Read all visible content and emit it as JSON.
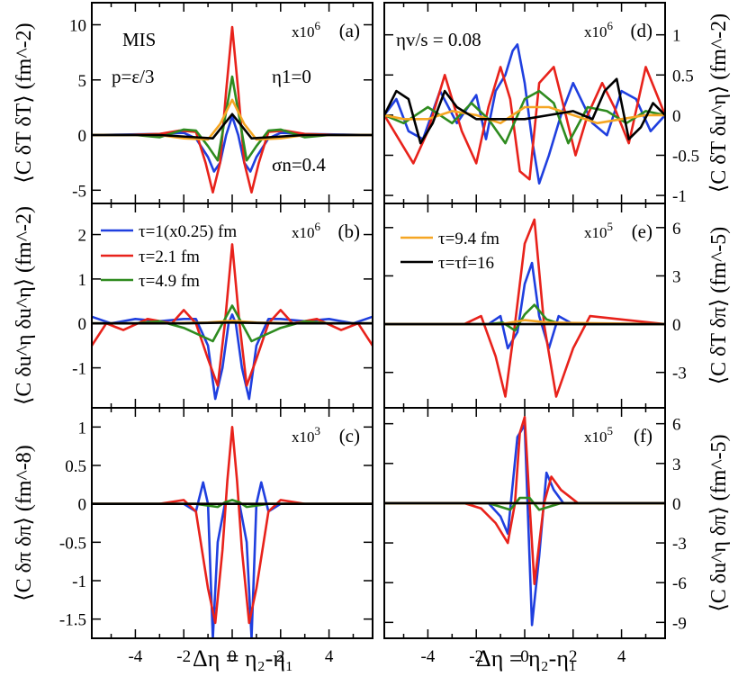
{
  "figure": {
    "x_axis_label": "Δη = η₂-η₁",
    "legend": [
      {
        "label": "τ=1(x0.25) fm",
        "color": "#1f3fdf"
      },
      {
        "label": "τ=2.1 fm",
        "color": "#e8221b"
      },
      {
        "label": "τ=4.9 fm",
        "color": "#2e8b1f"
      },
      {
        "label": "τ=9.4 fm",
        "color": "#f5a623"
      },
      {
        "label": "τ=τf=16",
        "color": "#000000"
      }
    ],
    "annotations": {
      "model": "MIS",
      "eos": "p=ε/3",
      "eta1": "η1=0",
      "sigma": "σn=0.4",
      "viscosity": "ηv/s = 0.08"
    }
  },
  "chart_data": [
    {
      "id": "a",
      "type": "line",
      "panel_label": "(a)",
      "scale": "x10^6",
      "ylabel": "⟨C δT δT⟩ (fm^-2)",
      "xlim": [
        -5.8,
        5.8
      ],
      "ylim": [
        -6.2,
        12
      ],
      "yticks": [
        -5,
        0,
        5,
        10
      ],
      "series": [
        {
          "name": "τ=1(x0.25) fm",
          "color": "#1f3fdf",
          "x": [
            -5.8,
            -4.5,
            -3,
            -2,
            -1.5,
            -1,
            -0.75,
            -0.5,
            -0.25,
            0,
            0.25,
            0.5,
            0.75,
            1,
            1.5,
            2,
            3,
            4.5,
            5.8
          ],
          "y": [
            0,
            0.05,
            0.1,
            0.2,
            -0.3,
            -2,
            -3.3,
            -2.5,
            0,
            1.7,
            0,
            -2.5,
            -3.3,
            -2,
            -0.3,
            0.2,
            0.1,
            0.05,
            0
          ]
        },
        {
          "name": "τ=2.1 fm",
          "color": "#e8221b",
          "x": [
            -5.8,
            -4.5,
            -3,
            -2.2,
            -1.5,
            -1.1,
            -0.8,
            -0.5,
            -0.25,
            0,
            0.25,
            0.5,
            0.8,
            1.1,
            1.5,
            2.2,
            3,
            4.5,
            5.8
          ],
          "y": [
            0,
            0,
            0.1,
            0.4,
            0.3,
            -2.5,
            -5.2,
            -2.5,
            4,
            9.8,
            4,
            -2.5,
            -5.2,
            -2.5,
            0.3,
            0.4,
            0.1,
            0,
            0
          ]
        },
        {
          "name": "τ=4.9 fm",
          "color": "#2e8b1f",
          "x": [
            -5.8,
            -4,
            -3,
            -2,
            -1.5,
            -1,
            -0.6,
            -0.3,
            0,
            0.3,
            0.6,
            1,
            1.5,
            2,
            3,
            4,
            5.8
          ],
          "y": [
            0,
            0,
            -0.2,
            0.5,
            0.4,
            -1,
            -2.3,
            1.5,
            5.3,
            1.5,
            -2.3,
            -1,
            0.4,
            0.5,
            -0.2,
            0,
            0
          ]
        },
        {
          "name": "τ=9.4 fm",
          "color": "#f5a623",
          "x": [
            -5.8,
            -3,
            -2,
            -1,
            -0.5,
            0,
            0.5,
            1,
            2,
            3,
            5.8
          ],
          "y": [
            0,
            0,
            -0.3,
            -0.4,
            1,
            3.2,
            1,
            -0.4,
            -0.3,
            0,
            0
          ]
        },
        {
          "name": "τ=τf=16",
          "color": "#000000",
          "x": [
            -5.8,
            -3,
            -1.5,
            -0.8,
            -0.4,
            0,
            0.4,
            0.8,
            1.5,
            3,
            5.8
          ],
          "y": [
            0,
            0,
            -0.2,
            -0.3,
            0.8,
            1.9,
            0.8,
            -0.3,
            -0.2,
            0,
            0
          ]
        }
      ]
    },
    {
      "id": "b",
      "type": "line",
      "panel_label": "(b)",
      "scale": "x10^6",
      "ylabel": "⟨C δu^η δu^η⟩ (fm^-2)",
      "xlim": [
        -5.8,
        5.8
      ],
      "ylim": [
        -1.9,
        2.7
      ],
      "yticks": [
        -1,
        0,
        1,
        2
      ],
      "series": [
        {
          "name": "τ=1(x0.25) fm",
          "color": "#1f3fdf",
          "x": [
            -5.8,
            -5,
            -4,
            -3,
            -2,
            -1.5,
            -1,
            -0.7,
            -0.4,
            -0.15,
            0,
            0.15,
            0.4,
            0.7,
            1,
            1.5,
            2,
            3,
            4,
            5,
            5.8
          ],
          "y": [
            0.15,
            0,
            0.1,
            0.05,
            0.1,
            0.1,
            -0.5,
            -1.7,
            -1,
            0,
            0.2,
            0,
            -1,
            -1.7,
            -0.5,
            0.1,
            0.1,
            0.05,
            0.1,
            0,
            0.15
          ]
        },
        {
          "name": "τ=2.1 fm",
          "color": "#e8221b",
          "x": [
            -5.8,
            -5.2,
            -4.5,
            -3.5,
            -2.5,
            -2,
            -1.5,
            -1,
            -0.6,
            -0.3,
            0,
            0.3,
            0.6,
            1,
            1.5,
            2,
            2.5,
            3.5,
            4.5,
            5.2,
            5.8
          ],
          "y": [
            -0.5,
            0,
            -0.15,
            0.1,
            0,
            0.3,
            0,
            -0.8,
            -1.4,
            0,
            1.78,
            0,
            -1.4,
            -0.8,
            0,
            0.3,
            0,
            0.1,
            -0.15,
            0,
            -0.5
          ]
        },
        {
          "name": "τ=4.9 fm",
          "color": "#2e8b1f",
          "x": [
            -5.8,
            -4,
            -3,
            -2,
            -1.2,
            -0.8,
            -0.4,
            0,
            0.4,
            0.8,
            1.2,
            2,
            3,
            4,
            5.8
          ],
          "y": [
            0,
            0,
            0.05,
            -0.1,
            -0.3,
            -0.4,
            0,
            0.4,
            0,
            -0.4,
            -0.3,
            -0.1,
            0.05,
            0,
            0
          ]
        },
        {
          "name": "τ=9.4 fm",
          "color": "#f5a623",
          "x": [
            -5.8,
            -3,
            -1,
            0,
            1,
            3,
            5.8
          ],
          "y": [
            0,
            0,
            0.02,
            0.06,
            0.02,
            0,
            0
          ]
        },
        {
          "name": "τ=τf=16",
          "color": "#000000",
          "x": [
            -5.8,
            -2,
            0,
            2,
            5.8
          ],
          "y": [
            0,
            0,
            0.02,
            0,
            0
          ]
        }
      ]
    },
    {
      "id": "c",
      "type": "line",
      "panel_label": "(c)",
      "scale": "x10^3",
      "ylabel": "⟨C δπ δπ⟩ (fm^-8)",
      "xlim": [
        -5.8,
        5.8
      ],
      "ylim": [
        -1.75,
        1.25
      ],
      "yticks": [
        -1.5,
        -1,
        -0.5,
        0,
        0.5,
        1
      ],
      "series": [
        {
          "name": "τ=1(x0.25) fm",
          "color": "#1f3fdf",
          "x": [
            -5.8,
            -2.5,
            -2,
            -1.5,
            -1.2,
            -1,
            -0.8,
            -0.6,
            -0.3,
            0,
            0.3,
            0.6,
            0.8,
            1,
            1.2,
            1.5,
            2,
            2.5,
            5.8
          ],
          "y": [
            0,
            0,
            0,
            -0.1,
            0.28,
            0,
            -1.75,
            -0.5,
            0,
            0,
            0,
            -0.5,
            -1.75,
            0,
            0.28,
            -0.1,
            0,
            0,
            0
          ]
        },
        {
          "name": "τ=2.1 fm",
          "color": "#e8221b",
          "x": [
            -5.8,
            -3,
            -2,
            -1.5,
            -1,
            -0.7,
            -0.4,
            -0.2,
            0,
            0.2,
            0.4,
            0.7,
            1,
            1.5,
            2,
            3,
            5.8
          ],
          "y": [
            0,
            0,
            0.05,
            -0.1,
            -1.1,
            -1.55,
            -0.6,
            0.3,
            1,
            0.3,
            -0.6,
            -1.55,
            -1.1,
            -0.1,
            0.05,
            0,
            0
          ]
        },
        {
          "name": "τ=4.9 fm",
          "color": "#2e8b1f",
          "x": [
            -5.8,
            -1.5,
            -0.6,
            -0.3,
            0,
            0.3,
            0.6,
            1.5,
            5.8
          ],
          "y": [
            0,
            0,
            -0.04,
            0.02,
            0.05,
            0.02,
            -0.04,
            0,
            0
          ]
        },
        {
          "name": "τ=9.4 fm",
          "color": "#f5a623",
          "x": [
            -5.8,
            5.8
          ],
          "y": [
            0,
            0
          ]
        },
        {
          "name": "τ=τf=16",
          "color": "#000000",
          "x": [
            -5.8,
            5.8
          ],
          "y": [
            0,
            0
          ]
        }
      ]
    },
    {
      "id": "d",
      "type": "line",
      "panel_label": "(d)",
      "scale": "x10^6",
      "ylabel": "⟨C δT δu^η⟩ (fm^-2)",
      "xlim": [
        -5.8,
        5.8
      ],
      "ylim": [
        -1.1,
        1.4
      ],
      "yticks": [
        -1,
        -0.5,
        0,
        0.5,
        1
      ],
      "yaxis_side": "right",
      "series": [
        {
          "name": "τ=1(x0.25) fm",
          "color": "#1f3fdf",
          "x": [
            -5.8,
            -5.3,
            -4.8,
            -4.2,
            -3.5,
            -2.8,
            -2,
            -1.6,
            -1.2,
            -0.8,
            -0.5,
            -0.3,
            0,
            0.3,
            0.6,
            1,
            1.5,
            2,
            2.8,
            3.4,
            4,
            4.6,
            5.2,
            5.8
          ],
          "y": [
            0,
            0.2,
            -0.2,
            -0.3,
            0.3,
            -0.1,
            0.25,
            -0.3,
            0.3,
            0.5,
            0.8,
            0.88,
            0.4,
            -0.3,
            -0.85,
            -0.5,
            0,
            0.4,
            -0.1,
            -0.25,
            0.3,
            0.2,
            -0.2,
            0
          ]
        },
        {
          "name": "τ=2.1 fm",
          "color": "#e8221b",
          "x": [
            -5.8,
            -5.2,
            -4.6,
            -4,
            -3.3,
            -2.6,
            -2,
            -1.5,
            -1,
            -0.6,
            -0.2,
            0.2,
            0.6,
            1.2,
            1.7,
            2.1,
            2.6,
            3.2,
            3.7,
            4.3,
            5,
            5.8
          ],
          "y": [
            0,
            -0.3,
            -0.6,
            -0.2,
            0.5,
            -0.2,
            -0.6,
            0.1,
            0.6,
            0.2,
            -0.7,
            -0.8,
            0.4,
            0.6,
            0,
            -0.5,
            0,
            0.4,
            0.1,
            -0.35,
            0.6,
            0
          ]
        },
        {
          "name": "τ=4.9 fm",
          "color": "#2e8b1f",
          "x": [
            -5.8,
            -5,
            -4,
            -3,
            -2.2,
            -1.5,
            -0.8,
            0,
            0.6,
            1.2,
            1.8,
            2.6,
            3.4,
            4.2,
            5,
            5.8
          ],
          "y": [
            0,
            -0.1,
            0.1,
            -0.1,
            0.15,
            -0.05,
            -0.35,
            0.2,
            0.3,
            0.15,
            -0.35,
            0.1,
            0.05,
            -0.1,
            0.05,
            0
          ]
        },
        {
          "name": "τ=9.4 fm",
          "color": "#f5a623",
          "x": [
            -5.8,
            -5,
            -4,
            -3,
            -2,
            -1,
            0,
            1,
            2,
            3,
            4,
            5,
            5.8
          ],
          "y": [
            0,
            -0.05,
            -0.05,
            0.05,
            0,
            -0.1,
            0.1,
            0.1,
            0,
            -0.1,
            -0.05,
            0,
            0
          ]
        },
        {
          "name": "τ=τf=16",
          "color": "#000000",
          "x": [
            -5.8,
            -5.3,
            -4.8,
            -4.3,
            -3.8,
            -3.3,
            -2.8,
            -2,
            -1,
            0,
            1,
            2,
            2.8,
            3.3,
            3.8,
            4.3,
            4.8,
            5.3,
            5.8
          ],
          "y": [
            0,
            0.3,
            0.2,
            -0.35,
            -0.1,
            0.3,
            0.1,
            -0.05,
            -0.05,
            -0.05,
            0,
            0.05,
            -0.05,
            0.3,
            0.45,
            -0.3,
            -0.15,
            0.15,
            0
          ]
        }
      ]
    },
    {
      "id": "e",
      "type": "line",
      "panel_label": "(e)",
      "scale": "x10^5",
      "ylabel": "⟨C δT δπ⟩ (fm^-5)",
      "xlim": [
        -5.8,
        5.8
      ],
      "ylim": [
        -5.2,
        7.5
      ],
      "yticks": [
        -3,
        0,
        3,
        6
      ],
      "series": [
        {
          "name": "τ=1(x0.25) fm",
          "color": "#1f3fdf",
          "x": [
            -5.8,
            -1.5,
            -1,
            -0.7,
            -0.3,
            0,
            0.3,
            0.6,
            1,
            1.4,
            2,
            5.8
          ],
          "y": [
            0,
            0,
            0.5,
            -1.5,
            -0.5,
            2.5,
            3.8,
            0.5,
            -1.5,
            0.5,
            0,
            0
          ]
        },
        {
          "name": "τ=2.1 fm",
          "color": "#e8221b",
          "x": [
            -5.8,
            -2.5,
            -1.8,
            -1.2,
            -0.8,
            -0.4,
            0,
            0.4,
            0.8,
            1.3,
            2,
            2.7,
            5.8
          ],
          "y": [
            0,
            0,
            0.5,
            -2,
            -4.5,
            0,
            5,
            6.5,
            0,
            -4.5,
            -1.5,
            0.5,
            0
          ]
        },
        {
          "name": "τ=4.9 fm",
          "color": "#2e8b1f",
          "x": [
            -5.8,
            -1.5,
            -0.9,
            -0.4,
            0,
            0.4,
            0.9,
            1.5,
            5.8
          ],
          "y": [
            0,
            0,
            0.1,
            -0.4,
            0.6,
            1.2,
            0.3,
            0,
            0
          ]
        },
        {
          "name": "τ=9.4 fm",
          "color": "#f5a623",
          "x": [
            -5.8,
            -1,
            0,
            1,
            5.8
          ],
          "y": [
            0,
            0,
            0.25,
            0.1,
            0
          ]
        },
        {
          "name": "τ=τf=16",
          "color": "#000000",
          "x": [
            -5.8,
            5.8
          ],
          "y": [
            0,
            0
          ]
        }
      ]
    },
    {
      "id": "f",
      "type": "line",
      "panel_label": "(f)",
      "scale": "x10^5",
      "ylabel": "⟨C δu^η δπ⟩ (fm^-5)",
      "xlim": [
        -5.8,
        5.8
      ],
      "ylim": [
        -10.2,
        7.2
      ],
      "yticks": [
        -9,
        -6,
        -3,
        0,
        3,
        6
      ],
      "series": [
        {
          "name": "τ=1(x0.25) fm",
          "color": "#1f3fdf",
          "x": [
            -5.8,
            -2,
            -1.5,
            -1,
            -0.7,
            -0.3,
            0,
            0.3,
            0.6,
            0.9,
            1.2,
            1.6,
            2.2,
            5.8
          ],
          "y": [
            0,
            0,
            0,
            -1,
            -2.3,
            5,
            5.9,
            -9.2,
            -4,
            2.3,
            1,
            0,
            0,
            0
          ]
        },
        {
          "name": "τ=2.1 fm",
          "color": "#e8221b",
          "x": [
            -5.8,
            -2.5,
            -1.8,
            -1.2,
            -0.7,
            -0.4,
            -0.2,
            0,
            0.2,
            0.4,
            0.8,
            1.1,
            1.5,
            2.2,
            3,
            5.8
          ],
          "y": [
            0,
            0,
            -0.4,
            -1.5,
            -3,
            0,
            5.3,
            6.5,
            0,
            -6.1,
            0,
            2,
            1,
            0,
            0,
            0
          ]
        },
        {
          "name": "τ=4.9 fm",
          "color": "#2e8b1f",
          "x": [
            -5.8,
            -1.5,
            -0.6,
            -0.2,
            0.2,
            0.6,
            1.5,
            5.8
          ],
          "y": [
            0,
            0,
            -0.5,
            0.4,
            0.4,
            -0.5,
            0,
            0
          ]
        },
        {
          "name": "τ=9.4 fm",
          "color": "#f5a623",
          "x": [
            -5.8,
            5.8
          ],
          "y": [
            0,
            0
          ]
        },
        {
          "name": "τ=τf=16",
          "color": "#000000",
          "x": [
            -5.8,
            5.8
          ],
          "y": [
            0,
            0
          ]
        }
      ]
    }
  ]
}
